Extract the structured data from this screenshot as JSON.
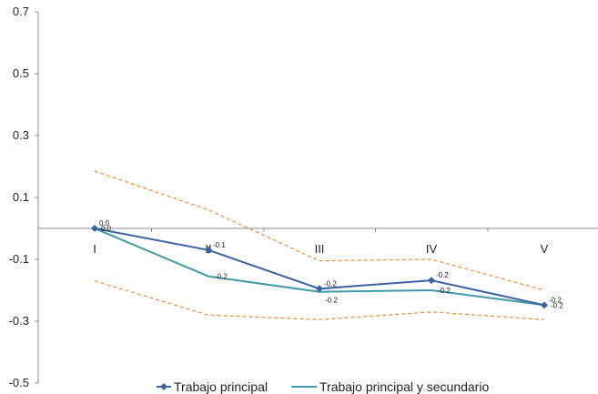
{
  "chart_data": {
    "type": "line",
    "categories": [
      "I",
      "II",
      "III",
      "IV",
      "V"
    ],
    "series": [
      {
        "name": "Trabajo principal",
        "values": [
          0.0,
          -0.07,
          -0.195,
          -0.168,
          -0.248
        ],
        "labels": [
          "0.0",
          "-0.1",
          "-0.2",
          "-0.2",
          "-0.2"
        ],
        "color": "#3a62a4",
        "marker": "diamond"
      },
      {
        "name": "Trabajo principal y secundario",
        "values": [
          0.0,
          -0.155,
          -0.205,
          -0.2,
          -0.248
        ],
        "labels": [
          "0.0",
          "-0.2",
          "-0.2",
          "-0.2",
          "-0.2"
        ],
        "color": "#3f9aa8",
        "marker": "none"
      },
      {
        "values": [
          0.185,
          0.06,
          -0.105,
          -0.1,
          -0.2
        ],
        "color": "#f08a30",
        "style": "dashed"
      },
      {
        "values": [
          -0.17,
          -0.28,
          -0.295,
          -0.27,
          -0.295
        ],
        "color": "#f08a30",
        "style": "dashed"
      }
    ],
    "y_ticks": [
      "0.7",
      "0.5",
      "0.3",
      "0.1",
      "-0.1",
      "-0.3",
      "-0.5"
    ],
    "ylim": [
      -0.5,
      0.7
    ],
    "category_axis_at": 0,
    "grid": false,
    "legend_position": "bottom"
  }
}
